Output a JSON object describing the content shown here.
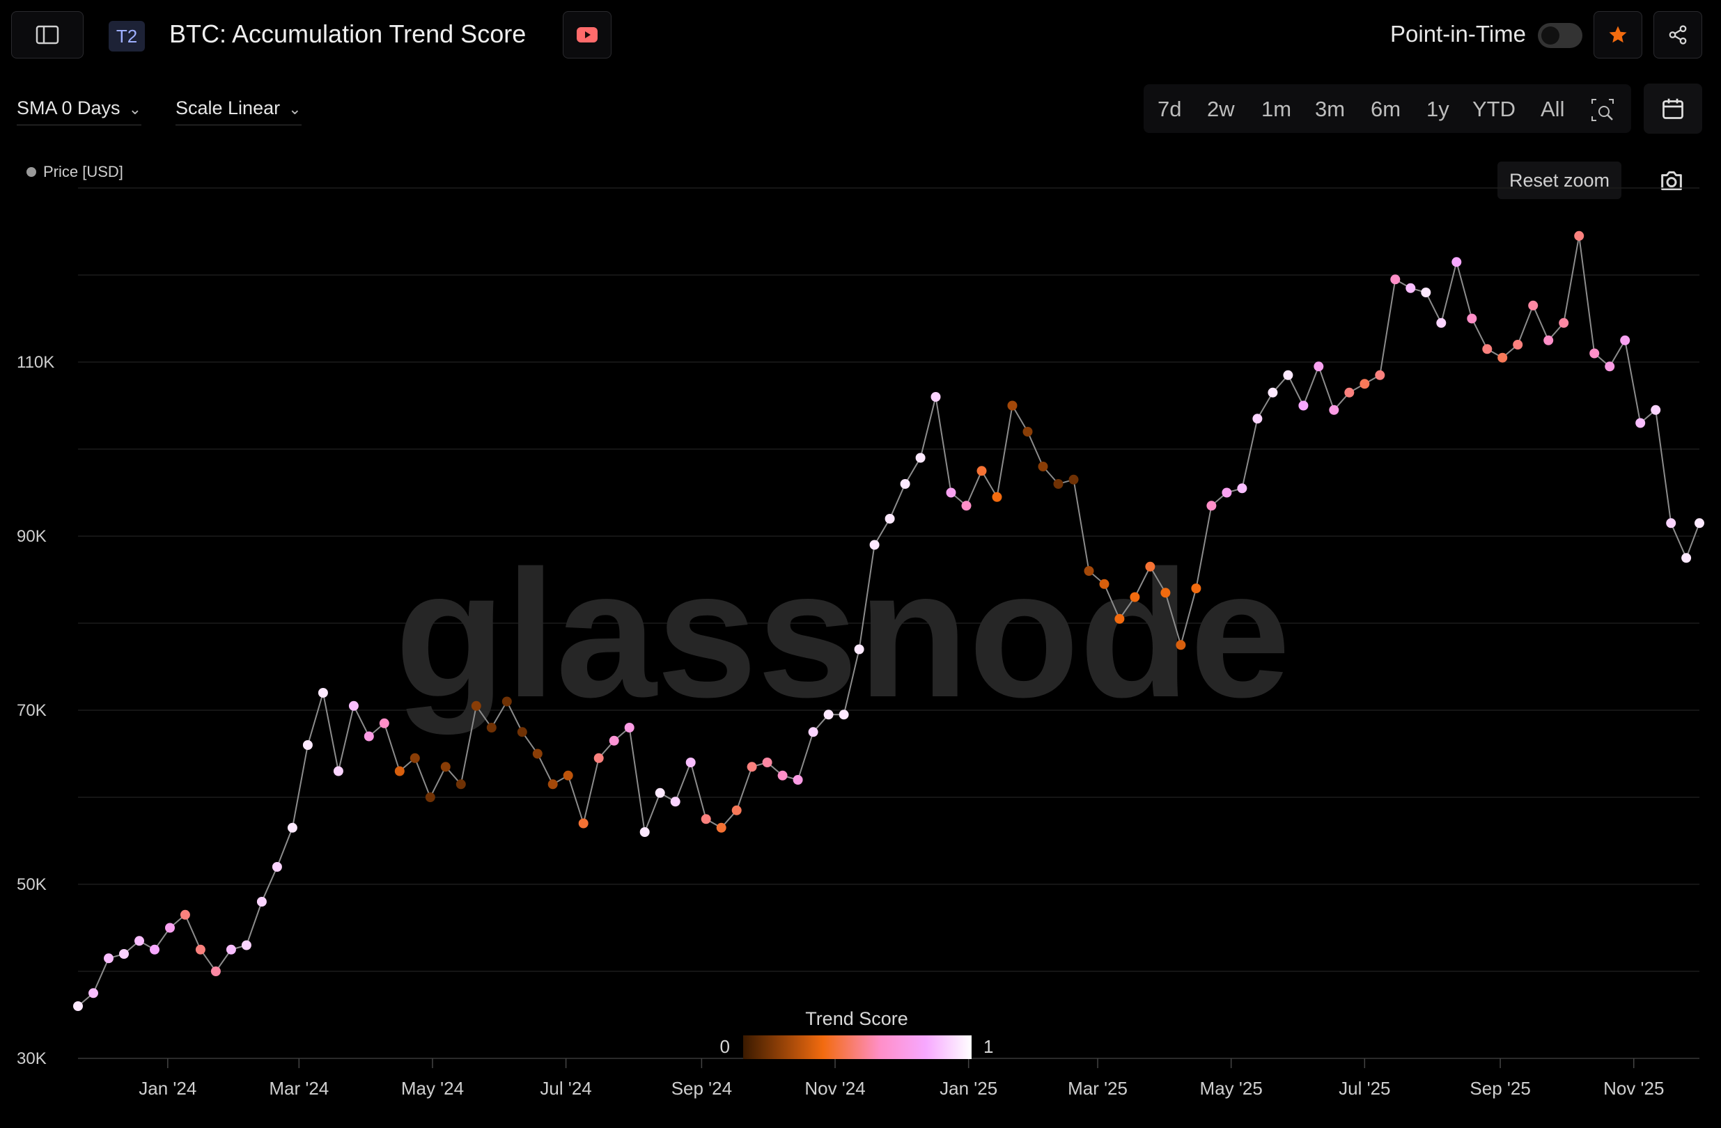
{
  "header": {
    "sidebar_icon": "sidebar-panel-icon",
    "tier_badge": "T2",
    "title": "BTC: Accumulation Trend Score",
    "video_icon": "youtube-icon",
    "point_in_time_label": "Point-in-Time",
    "point_in_time_on": false,
    "star_icon": "star-icon",
    "share_icon": "share-icon"
  },
  "controls": {
    "sma_label": "SMA 0 Days",
    "scale_label": "Scale Linear",
    "ranges": [
      "7d",
      "2w",
      "1m",
      "3m",
      "6m",
      "1y",
      "YTD",
      "All"
    ],
    "zoom_icon": "zoom-select-icon",
    "calendar_icon": "calendar-icon",
    "reset_zoom_label": "Reset zoom",
    "camera_icon": "camera-icon"
  },
  "colors": {
    "background": "#000000",
    "accent": "#f26b0f",
    "line": "#8c8c8c",
    "grid": "#1c1c1c",
    "gradient": [
      "#3a1a00",
      "#f26b0f",
      "#ff8fc8",
      "#f7a8ff",
      "#ffffff"
    ]
  },
  "watermark": "glassnode",
  "chart_data": {
    "type": "scatter",
    "title": "BTC: Accumulation Trend Score",
    "legend": [
      "Price [USD]"
    ],
    "legend_placement": "top-left",
    "ylabel": "Price [USD]",
    "ylim": [
      30000,
      130000
    ],
    "yticks": [
      30000,
      50000,
      70000,
      90000,
      110000
    ],
    "ytick_labels": [
      "30K",
      "50K",
      "70K",
      "90K",
      "110K"
    ],
    "xlim": [
      "2023-11-21",
      "2025-12-01"
    ],
    "xticks": [
      "2024-01-01",
      "2024-03-01",
      "2024-05-01",
      "2024-07-01",
      "2024-09-01",
      "2024-11-01",
      "2025-01-01",
      "2025-03-01",
      "2025-05-01",
      "2025-07-01",
      "2025-09-01",
      "2025-11-01"
    ],
    "xtick_labels": [
      "Jan '24",
      "Mar '24",
      "May '24",
      "Jul '24",
      "Sep '24",
      "Nov '24",
      "Jan '25",
      "Mar '25",
      "May '25",
      "Jul '25",
      "Sep '25",
      "Nov '25"
    ],
    "colorbar": {
      "title": "Trend Score",
      "min_label": "0",
      "max_label": "1",
      "range": [
        0,
        1
      ],
      "placement": "bottom-center"
    },
    "series": [
      {
        "name": "Price [USD]",
        "columns": [
          "date",
          "price",
          "trend_score"
        ],
        "points": [
          [
            "2023-11-21",
            36000,
            0.95
          ],
          [
            "2023-11-28",
            37500,
            0.85
          ],
          [
            "2023-12-05",
            41500,
            0.85
          ],
          [
            "2023-12-12",
            42000,
            0.9
          ],
          [
            "2023-12-19",
            43500,
            0.85
          ],
          [
            "2023-12-26",
            42500,
            0.8
          ],
          [
            "2024-01-02",
            45000,
            0.75
          ],
          [
            "2024-01-09",
            46500,
            0.5
          ],
          [
            "2024-01-16",
            42500,
            0.5
          ],
          [
            "2024-01-23",
            40000,
            0.55
          ],
          [
            "2024-01-30",
            42500,
            0.85
          ],
          [
            "2024-02-06",
            43000,
            0.9
          ],
          [
            "2024-02-13",
            48000,
            0.9
          ],
          [
            "2024-02-20",
            52000,
            0.9
          ],
          [
            "2024-02-27",
            56500,
            0.95
          ],
          [
            "2024-03-05",
            66000,
            0.95
          ],
          [
            "2024-03-12",
            72000,
            0.95
          ],
          [
            "2024-03-19",
            63000,
            0.9
          ],
          [
            "2024-03-26",
            70500,
            0.85
          ],
          [
            "2024-04-02",
            67000,
            0.7
          ],
          [
            "2024-04-09",
            68500,
            0.6
          ],
          [
            "2024-04-16",
            63000,
            0.3
          ],
          [
            "2024-04-23",
            64500,
            0.15
          ],
          [
            "2024-04-30",
            60000,
            0.1
          ],
          [
            "2024-05-07",
            63500,
            0.15
          ],
          [
            "2024-05-14",
            61500,
            0.1
          ],
          [
            "2024-05-21",
            70500,
            0.15
          ],
          [
            "2024-05-28",
            68000,
            0.1
          ],
          [
            "2024-06-04",
            71000,
            0.1
          ],
          [
            "2024-06-11",
            67500,
            0.1
          ],
          [
            "2024-06-18",
            65000,
            0.15
          ],
          [
            "2024-06-25",
            61500,
            0.2
          ],
          [
            "2024-07-02",
            62500,
            0.25
          ],
          [
            "2024-07-09",
            57000,
            0.4
          ],
          [
            "2024-07-16",
            64500,
            0.5
          ],
          [
            "2024-07-23",
            66500,
            0.65
          ],
          [
            "2024-07-30",
            68000,
            0.7
          ],
          [
            "2024-08-06",
            56000,
            0.95
          ],
          [
            "2024-08-13",
            60500,
            0.95
          ],
          [
            "2024-08-20",
            59500,
            0.9
          ],
          [
            "2024-08-27",
            64000,
            0.85
          ],
          [
            "2024-09-03",
            57500,
            0.5
          ],
          [
            "2024-09-10",
            56500,
            0.4
          ],
          [
            "2024-09-17",
            58500,
            0.45
          ],
          [
            "2024-09-24",
            63500,
            0.5
          ],
          [
            "2024-10-01",
            64000,
            0.55
          ],
          [
            "2024-10-08",
            62500,
            0.6
          ],
          [
            "2024-10-15",
            62000,
            0.7
          ],
          [
            "2024-10-22",
            67500,
            0.9
          ],
          [
            "2024-10-29",
            69500,
            0.95
          ],
          [
            "2024-11-05",
            69500,
            0.95
          ],
          [
            "2024-11-12",
            77000,
            0.95
          ],
          [
            "2024-11-19",
            89000,
            0.95
          ],
          [
            "2024-11-26",
            92000,
            0.95
          ],
          [
            "2024-12-03",
            96000,
            0.95
          ],
          [
            "2024-12-10",
            99000,
            0.95
          ],
          [
            "2024-12-17",
            106000,
            0.9
          ],
          [
            "2024-12-24",
            95000,
            0.75
          ],
          [
            "2024-12-31",
            93500,
            0.6
          ],
          [
            "2025-01-07",
            97500,
            0.4
          ],
          [
            "2025-01-14",
            94500,
            0.35
          ],
          [
            "2025-01-21",
            105000,
            0.2
          ],
          [
            "2025-01-28",
            102000,
            0.15
          ],
          [
            "2025-02-04",
            98000,
            0.15
          ],
          [
            "2025-02-11",
            96000,
            0.1
          ],
          [
            "2025-02-18",
            96500,
            0.1
          ],
          [
            "2025-02-25",
            86000,
            0.2
          ],
          [
            "2025-03-04",
            84500,
            0.3
          ],
          [
            "2025-03-11",
            80500,
            0.35
          ],
          [
            "2025-03-18",
            83000,
            0.35
          ],
          [
            "2025-03-25",
            86500,
            0.4
          ],
          [
            "2025-04-01",
            83500,
            0.35
          ],
          [
            "2025-04-08",
            77500,
            0.3
          ],
          [
            "2025-04-15",
            84000,
            0.35
          ],
          [
            "2025-04-22",
            93500,
            0.6
          ],
          [
            "2025-04-29",
            95000,
            0.75
          ],
          [
            "2025-05-06",
            95500,
            0.85
          ],
          [
            "2025-05-13",
            103500,
            0.9
          ],
          [
            "2025-05-20",
            106500,
            0.95
          ],
          [
            "2025-05-27",
            108500,
            0.95
          ],
          [
            "2025-06-03",
            105000,
            0.8
          ],
          [
            "2025-06-10",
            109500,
            0.75
          ],
          [
            "2025-06-17",
            104500,
            0.7
          ],
          [
            "2025-06-24",
            106500,
            0.5
          ],
          [
            "2025-07-01",
            107500,
            0.45
          ],
          [
            "2025-07-08",
            108500,
            0.5
          ],
          [
            "2025-07-15",
            119500,
            0.6
          ],
          [
            "2025-07-22",
            118500,
            0.85
          ],
          [
            "2025-07-29",
            118000,
            0.95
          ],
          [
            "2025-08-05",
            114500,
            0.9
          ],
          [
            "2025-08-12",
            121500,
            0.8
          ],
          [
            "2025-08-19",
            115000,
            0.6
          ],
          [
            "2025-08-26",
            111500,
            0.5
          ],
          [
            "2025-09-02",
            110500,
            0.45
          ],
          [
            "2025-09-09",
            112000,
            0.5
          ],
          [
            "2025-09-16",
            116500,
            0.55
          ],
          [
            "2025-09-23",
            112500,
            0.6
          ],
          [
            "2025-09-30",
            114500,
            0.55
          ],
          [
            "2025-10-07",
            124500,
            0.5
          ],
          [
            "2025-10-14",
            111000,
            0.6
          ],
          [
            "2025-10-21",
            109500,
            0.7
          ],
          [
            "2025-10-28",
            112500,
            0.75
          ],
          [
            "2025-11-04",
            103000,
            0.85
          ],
          [
            "2025-11-11",
            104500,
            0.9
          ],
          [
            "2025-11-18",
            91500,
            0.9
          ],
          [
            "2025-11-25",
            87500,
            0.95
          ],
          [
            "2025-12-01",
            91500,
            0.95
          ]
        ]
      }
    ]
  }
}
